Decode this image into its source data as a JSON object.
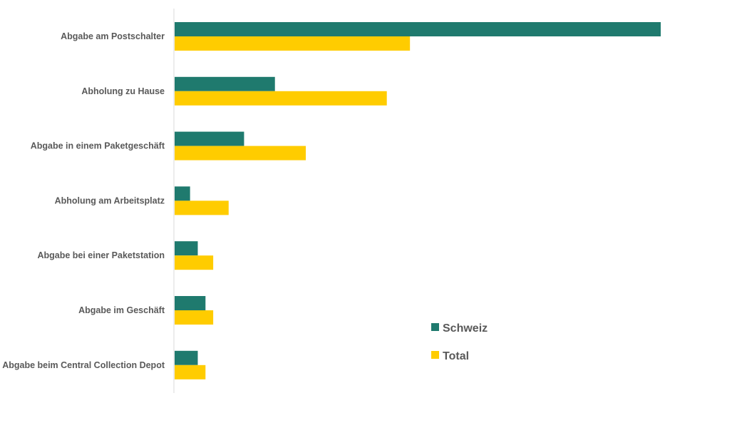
{
  "chart_data": {
    "type": "bar",
    "orientation": "horizontal",
    "title": "",
    "xlabel": "",
    "ylabel": "",
    "categories": [
      "Abgabe am Postschalter",
      "Abholung zu Hause",
      "Abgabe in einem Paketgeschäft",
      "Abholung am Arbeitsplatz",
      "Abgabe bei einer Paketstation",
      "Abgabe im Geschäft",
      "Abgabe beim Central Collection Depot"
    ],
    "series": [
      {
        "name": "Schweiz",
        "color": "#1f7a6e",
        "values": [
          63,
          13,
          9,
          2,
          3,
          4,
          3
        ]
      },
      {
        "name": "Total",
        "color": "#ffcc00",
        "values": [
          30.5,
          27.5,
          17,
          7,
          5,
          5,
          4
        ]
      }
    ],
    "xlim": [
      0,
      63
    ],
    "grid": false,
    "legend": {
      "placement": "bottom-right",
      "entries": [
        "Schweiz",
        "Total"
      ]
    }
  }
}
